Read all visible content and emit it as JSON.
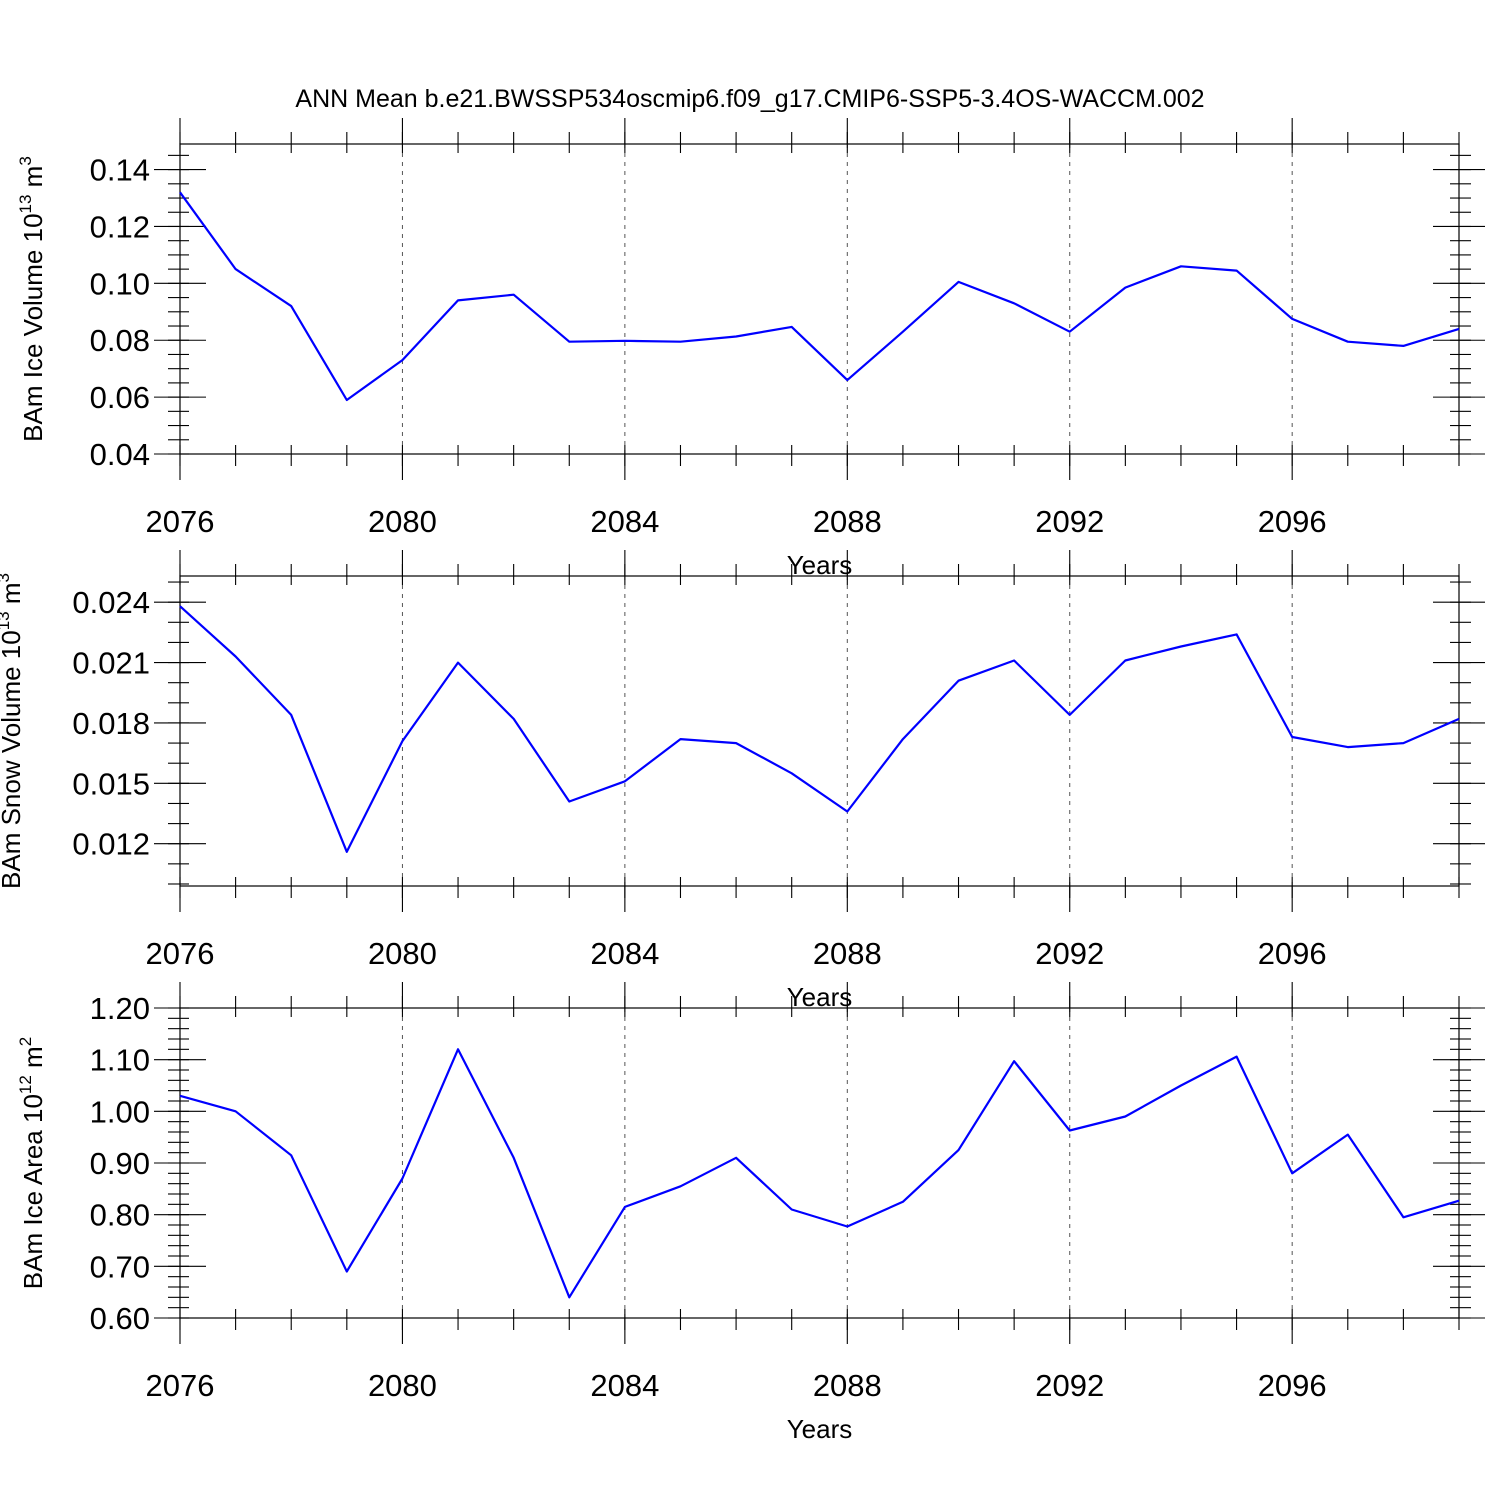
{
  "title": "ANN Mean b.e21.BWSSP534oscmip6.f09_g17.CMIP6-SSP5-3.4OS-WACCM.002",
  "colors": {
    "line": "#0000ff",
    "axis": "#000000",
    "grid": "#555555"
  },
  "chart_data": [
    {
      "type": "line",
      "title": "ANN Mean b.e21.BWSSP534oscmip6.f09_g17.CMIP6-SSP5-3.4OS-WACCM.002",
      "xlabel": "Years",
      "ylabel": {
        "text": "BAm Ice Volume 10",
        "exp": "13",
        "unit": " m",
        "unit_exp": "3"
      },
      "xlim": [
        2076,
        2099
      ],
      "ylim": [
        0.04,
        0.149
      ],
      "xticks": [
        "2076",
        "2080",
        "2084",
        "2088",
        "2092",
        "2096"
      ],
      "yticks": [
        0.04,
        0.06,
        0.08,
        0.1,
        0.12,
        0.14
      ],
      "ytick_labels": [
        "0.04",
        "0.06",
        "0.08",
        "0.10",
        "0.12",
        "0.14"
      ],
      "y_minor_step": 0.005,
      "x": [
        2076,
        2077,
        2078,
        2079,
        2080,
        2081,
        2082,
        2083,
        2084,
        2085,
        2086,
        2087,
        2088,
        2089,
        2090,
        2091,
        2092,
        2093,
        2094,
        2095,
        2096,
        2097,
        2098,
        2099
      ],
      "series": [
        {
          "name": "Ice Volume",
          "values": [
            0.132,
            0.105,
            0.092,
            0.059,
            0.073,
            0.094,
            0.096,
            0.0795,
            0.0798,
            0.0795,
            0.0813,
            0.0847,
            0.066,
            0.083,
            0.1005,
            0.093,
            0.083,
            0.0985,
            0.106,
            0.1045,
            0.0875,
            0.0795,
            0.078,
            0.084
          ]
        }
      ]
    },
    {
      "type": "line",
      "xlabel": "Years",
      "ylabel": {
        "text": "BAm Snow Volume 10",
        "exp": "13",
        "unit": " m",
        "unit_exp": "3"
      },
      "xlim": [
        2076,
        2099
      ],
      "ylim": [
        0.0099,
        0.0253
      ],
      "xticks": [
        "2076",
        "2080",
        "2084",
        "2088",
        "2092",
        "2096"
      ],
      "yticks": [
        0.012,
        0.015,
        0.018,
        0.021,
        0.024
      ],
      "ytick_labels": [
        "0.012",
        "0.015",
        "0.018",
        "0.021",
        "0.024"
      ],
      "y_minor_step": 0.001,
      "x": [
        2076,
        2077,
        2078,
        2079,
        2080,
        2081,
        2082,
        2083,
        2084,
        2085,
        2086,
        2087,
        2088,
        2089,
        2090,
        2091,
        2092,
        2093,
        2094,
        2095,
        2096,
        2097,
        2098,
        2099
      ],
      "series": [
        {
          "name": "Snow Volume",
          "values": [
            0.0238,
            0.0213,
            0.0184,
            0.0116,
            0.0171,
            0.021,
            0.0182,
            0.0141,
            0.0151,
            0.0172,
            0.017,
            0.0155,
            0.0136,
            0.0172,
            0.0201,
            0.0211,
            0.0184,
            0.0211,
            0.0218,
            0.0224,
            0.0173,
            0.0168,
            0.017,
            0.0182
          ]
        }
      ]
    },
    {
      "type": "line",
      "xlabel": "Years",
      "ylabel": {
        "text": "BAm Ice Area 10",
        "exp": "12",
        "unit": " m",
        "unit_exp": "2"
      },
      "xlim": [
        2076,
        2099
      ],
      "ylim": [
        0.6,
        1.2
      ],
      "xticks": [
        "2076",
        "2080",
        "2084",
        "2088",
        "2092",
        "2096"
      ],
      "yticks": [
        0.6,
        0.7,
        0.8,
        0.9,
        1.0,
        1.1,
        1.2
      ],
      "ytick_labels": [
        "0.60",
        "0.70",
        "0.80",
        "0.90",
        "1.00",
        "1.10",
        "1.20"
      ],
      "y_minor_step": 0.02,
      "x": [
        2076,
        2077,
        2078,
        2079,
        2080,
        2081,
        2082,
        2083,
        2084,
        2085,
        2086,
        2087,
        2088,
        2089,
        2090,
        2091,
        2092,
        2093,
        2094,
        2095,
        2096,
        2097,
        2098,
        2099
      ],
      "series": [
        {
          "name": "Ice Area",
          "values": [
            1.03,
            1.0,
            0.915,
            0.69,
            0.87,
            1.12,
            0.91,
            0.64,
            0.815,
            0.855,
            0.91,
            0.81,
            0.777,
            0.825,
            0.925,
            1.097,
            0.963,
            0.99,
            1.05,
            1.106,
            0.88,
            0.955,
            0.795,
            0.827
          ]
        }
      ]
    }
  ]
}
